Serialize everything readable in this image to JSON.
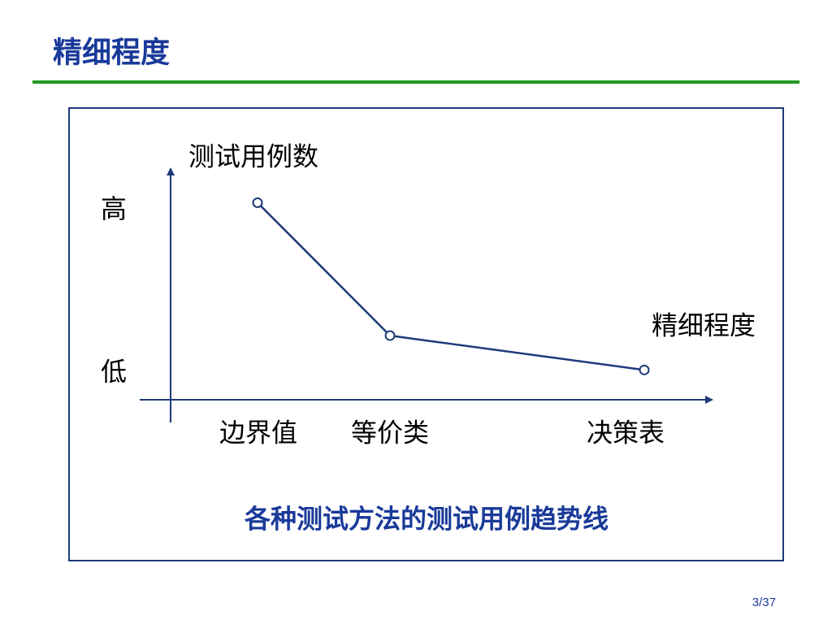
{
  "slide_title": "精细程度",
  "page_number": "3/37",
  "chart_data": {
    "type": "line",
    "y_label": "测试用例数",
    "x_label": "精细程度",
    "caption": "各种测试方法的测试用例趋势线",
    "categories": [
      "边界值",
      "等价类",
      "决策表"
    ],
    "values": [
      86,
      28,
      13
    ],
    "color": "#1f3a7a",
    "ylim": [
      0,
      100
    ],
    "yticks": [
      {
        "value": 82,
        "label": "高"
      },
      {
        "value": 11,
        "label": "低"
      }
    ],
    "grid": false
  }
}
